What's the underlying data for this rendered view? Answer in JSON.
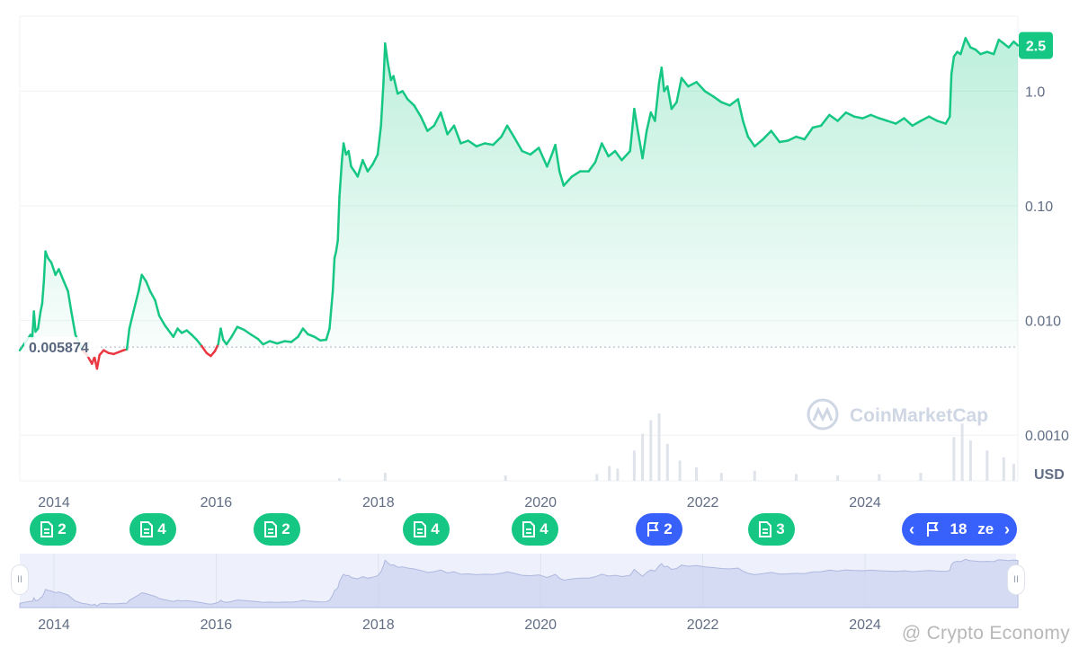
{
  "chart_data": {
    "type": "area",
    "currency_label": "USD",
    "y_scale": "log",
    "ylim": [
      0.0004,
      4.5
    ],
    "xlim": [
      2013.65,
      2025.67
    ],
    "y_ticks": [
      {
        "value": 1.0,
        "label": "1.0"
      },
      {
        "value": 0.1,
        "label": "0.10"
      },
      {
        "value": 0.01,
        "label": "0.010"
      },
      {
        "value": 0.001,
        "label": "0.0010"
      }
    ],
    "x_ticks": [
      "2014",
      "2016",
      "2018",
      "2020",
      "2022",
      "2024"
    ],
    "reference_price": 0.005874,
    "reference_label": "0.005874",
    "last_price": 2.5,
    "last_price_label": "2.5",
    "colors": {
      "up": "#16c784",
      "down": "#ea3943",
      "event_blue": "#3861fb",
      "navigator": "#eef1fb"
    },
    "series": [
      {
        "values": [
          [
            2013.65,
            0.0055
          ],
          [
            2013.78,
            0.0075
          ],
          [
            2013.8,
            0.007
          ],
          [
            2013.82,
            0.012
          ],
          [
            2013.84,
            0.008
          ],
          [
            2013.87,
            0.0085
          ],
          [
            2013.9,
            0.012
          ],
          [
            2013.92,
            0.014
          ],
          [
            2013.94,
            0.022
          ],
          [
            2013.96,
            0.04
          ],
          [
            2013.99,
            0.035
          ],
          [
            2014.03,
            0.032
          ],
          [
            2014.08,
            0.025
          ],
          [
            2014.12,
            0.028
          ],
          [
            2014.18,
            0.022
          ],
          [
            2014.23,
            0.018
          ],
          [
            2014.27,
            0.012
          ],
          [
            2014.32,
            0.0075
          ],
          [
            2014.36,
            0.0065
          ],
          [
            2014.4,
            0.0055
          ],
          [
            2014.46,
            0.005
          ],
          [
            2014.52,
            0.0042
          ],
          [
            2014.55,
            0.0048
          ],
          [
            2014.58,
            0.0038
          ],
          [
            2014.61,
            0.005
          ],
          [
            2014.66,
            0.0055
          ],
          [
            2014.72,
            0.0052
          ],
          [
            2014.78,
            0.0051
          ],
          [
            2014.84,
            0.0053
          ],
          [
            2014.9,
            0.0055
          ],
          [
            2014.94,
            0.0056
          ],
          [
            2014.97,
            0.0085
          ],
          [
            2015.02,
            0.012
          ],
          [
            2015.08,
            0.018
          ],
          [
            2015.12,
            0.025
          ],
          [
            2015.17,
            0.022
          ],
          [
            2015.22,
            0.018
          ],
          [
            2015.28,
            0.015
          ],
          [
            2015.33,
            0.011
          ],
          [
            2015.4,
            0.009
          ],
          [
            2015.5,
            0.0072
          ],
          [
            2015.55,
            0.0085
          ],
          [
            2015.6,
            0.0078
          ],
          [
            2015.66,
            0.0082
          ],
          [
            2015.72,
            0.0075
          ],
          [
            2015.78,
            0.0068
          ],
          [
            2015.84,
            0.006
          ],
          [
            2015.9,
            0.0052
          ],
          [
            2015.95,
            0.0049
          ],
          [
            2016.0,
            0.0054
          ],
          [
            2016.04,
            0.0062
          ],
          [
            2016.07,
            0.0085
          ],
          [
            2016.1,
            0.0068
          ],
          [
            2016.14,
            0.0062
          ],
          [
            2016.2,
            0.0072
          ],
          [
            2016.27,
            0.0088
          ],
          [
            2016.35,
            0.0083
          ],
          [
            2016.44,
            0.0075
          ],
          [
            2016.52,
            0.0069
          ],
          [
            2016.58,
            0.0062
          ],
          [
            2016.66,
            0.0066
          ],
          [
            2016.75,
            0.0063
          ],
          [
            2016.84,
            0.0066
          ],
          [
            2016.92,
            0.0065
          ],
          [
            2017.0,
            0.0072
          ],
          [
            2017.06,
            0.0085
          ],
          [
            2017.12,
            0.0076
          ],
          [
            2017.2,
            0.0072
          ],
          [
            2017.27,
            0.0067
          ],
          [
            2017.34,
            0.0068
          ],
          [
            2017.38,
            0.0085
          ],
          [
            2017.42,
            0.018
          ],
          [
            2017.44,
            0.035
          ],
          [
            2017.46,
            0.04
          ],
          [
            2017.48,
            0.05
          ],
          [
            2017.5,
            0.12
          ],
          [
            2017.53,
            0.25
          ],
          [
            2017.55,
            0.35
          ],
          [
            2017.58,
            0.28
          ],
          [
            2017.61,
            0.3
          ],
          [
            2017.64,
            0.22
          ],
          [
            2017.68,
            0.2
          ],
          [
            2017.72,
            0.18
          ],
          [
            2017.78,
            0.25
          ],
          [
            2017.84,
            0.2
          ],
          [
            2017.9,
            0.23
          ],
          [
            2017.96,
            0.28
          ],
          [
            2018.0,
            0.5
          ],
          [
            2018.03,
            1.2
          ],
          [
            2018.05,
            2.6
          ],
          [
            2018.08,
            1.8
          ],
          [
            2018.12,
            1.25
          ],
          [
            2018.15,
            1.35
          ],
          [
            2018.2,
            0.95
          ],
          [
            2018.26,
            1.0
          ],
          [
            2018.32,
            0.85
          ],
          [
            2018.4,
            0.75
          ],
          [
            2018.48,
            0.6
          ],
          [
            2018.56,
            0.45
          ],
          [
            2018.64,
            0.5
          ],
          [
            2018.72,
            0.65
          ],
          [
            2018.8,
            0.42
          ],
          [
            2018.88,
            0.5
          ],
          [
            2018.96,
            0.35
          ],
          [
            2019.05,
            0.37
          ],
          [
            2019.15,
            0.33
          ],
          [
            2019.25,
            0.35
          ],
          [
            2019.35,
            0.34
          ],
          [
            2019.45,
            0.4
          ],
          [
            2019.52,
            0.5
          ],
          [
            2019.6,
            0.4
          ],
          [
            2019.7,
            0.3
          ],
          [
            2019.8,
            0.28
          ],
          [
            2019.9,
            0.32
          ],
          [
            2020.0,
            0.22
          ],
          [
            2020.05,
            0.27
          ],
          [
            2020.1,
            0.34
          ],
          [
            2020.15,
            0.2
          ],
          [
            2020.2,
            0.15
          ],
          [
            2020.3,
            0.18
          ],
          [
            2020.4,
            0.2
          ],
          [
            2020.5,
            0.2
          ],
          [
            2020.58,
            0.24
          ],
          [
            2020.66,
            0.35
          ],
          [
            2020.74,
            0.27
          ],
          [
            2020.82,
            0.3
          ],
          [
            2020.9,
            0.25
          ],
          [
            2021.0,
            0.3
          ],
          [
            2021.05,
            0.7
          ],
          [
            2021.1,
            0.42
          ],
          [
            2021.15,
            0.26
          ],
          [
            2021.2,
            0.45
          ],
          [
            2021.25,
            0.65
          ],
          [
            2021.3,
            0.55
          ],
          [
            2021.35,
            1.2
          ],
          [
            2021.38,
            1.6
          ],
          [
            2021.41,
            1.0
          ],
          [
            2021.45,
            1.1
          ],
          [
            2021.5,
            0.7
          ],
          [
            2021.56,
            0.8
          ],
          [
            2021.62,
            1.3
          ],
          [
            2021.7,
            1.1
          ],
          [
            2021.8,
            1.2
          ],
          [
            2021.9,
            1.0
          ],
          [
            2022.0,
            0.9
          ],
          [
            2022.1,
            0.8
          ],
          [
            2022.2,
            0.75
          ],
          [
            2022.3,
            0.85
          ],
          [
            2022.36,
            0.55
          ],
          [
            2022.42,
            0.4
          ],
          [
            2022.5,
            0.33
          ],
          [
            2022.6,
            0.38
          ],
          [
            2022.7,
            0.45
          ],
          [
            2022.8,
            0.36
          ],
          [
            2022.9,
            0.37
          ],
          [
            2023.0,
            0.4
          ],
          [
            2023.1,
            0.38
          ],
          [
            2023.2,
            0.48
          ],
          [
            2023.3,
            0.5
          ],
          [
            2023.4,
            0.62
          ],
          [
            2023.5,
            0.55
          ],
          [
            2023.6,
            0.65
          ],
          [
            2023.7,
            0.6
          ],
          [
            2023.8,
            0.58
          ],
          [
            2023.9,
            0.62
          ],
          [
            2024.0,
            0.58
          ],
          [
            2024.1,
            0.55
          ],
          [
            2024.2,
            0.52
          ],
          [
            2024.3,
            0.58
          ],
          [
            2024.4,
            0.5
          ],
          [
            2024.5,
            0.55
          ],
          [
            2024.6,
            0.6
          ],
          [
            2024.7,
            0.55
          ],
          [
            2024.8,
            0.52
          ],
          [
            2024.85,
            0.6
          ],
          [
            2024.87,
            1.4
          ],
          [
            2024.9,
            2.0
          ],
          [
            2024.94,
            2.2
          ],
          [
            2024.98,
            2.1
          ],
          [
            2025.04,
            2.9
          ],
          [
            2025.1,
            2.4
          ],
          [
            2025.16,
            2.3
          ],
          [
            2025.22,
            2.1
          ],
          [
            2025.3,
            2.2
          ],
          [
            2025.38,
            2.1
          ],
          [
            2025.44,
            2.8
          ],
          [
            2025.5,
            2.6
          ],
          [
            2025.56,
            2.4
          ],
          [
            2025.62,
            2.7
          ],
          [
            2025.67,
            2.5
          ]
        ]
      }
    ],
    "volume": [
      [
        2017.5,
        0.04
      ],
      [
        2018.05,
        0.12
      ],
      [
        2019.5,
        0.08
      ],
      [
        2020.6,
        0.1
      ],
      [
        2020.75,
        0.22
      ],
      [
        2020.85,
        0.18
      ],
      [
        2021.05,
        0.45
      ],
      [
        2021.15,
        0.7
      ],
      [
        2021.25,
        0.9
      ],
      [
        2021.35,
        1.0
      ],
      [
        2021.45,
        0.55
      ],
      [
        2021.6,
        0.3
      ],
      [
        2021.8,
        0.2
      ],
      [
        2022.1,
        0.12
      ],
      [
        2022.5,
        0.15
      ],
      [
        2023.0,
        0.1
      ],
      [
        2023.5,
        0.08
      ],
      [
        2024.0,
        0.1
      ],
      [
        2024.5,
        0.12
      ],
      [
        2024.9,
        0.65
      ],
      [
        2025.0,
        0.85
      ],
      [
        2025.1,
        0.6
      ],
      [
        2025.3,
        0.45
      ],
      [
        2025.5,
        0.35
      ],
      [
        2025.62,
        0.25
      ]
    ],
    "navigator_x_ticks": [
      "2014",
      "2016",
      "2018",
      "2020",
      "2022",
      "2024"
    ]
  },
  "events": [
    {
      "x": 2014.05,
      "type": "document",
      "count": "2",
      "color": "green"
    },
    {
      "x": 2015.25,
      "type": "document",
      "count": "4",
      "color": "green"
    },
    {
      "x": 2016.75,
      "type": "document",
      "count": "2",
      "color": "green"
    },
    {
      "x": 2018.55,
      "type": "document",
      "count": "4",
      "color": "green"
    },
    {
      "x": 2019.85,
      "type": "document",
      "count": "4",
      "color": "green"
    },
    {
      "x": 2021.35,
      "type": "flag",
      "count": "2",
      "color": "blue"
    },
    {
      "x": 2022.7,
      "type": "document",
      "count": "3",
      "color": "green"
    }
  ],
  "event_wide": {
    "x": 2025.05,
    "count": "18",
    "text": "ze"
  },
  "watermark": "CoinMarketCap",
  "credit": "@ Crypto Economy",
  "navigator": {
    "left_handle": "II",
    "right_handle": "II"
  }
}
